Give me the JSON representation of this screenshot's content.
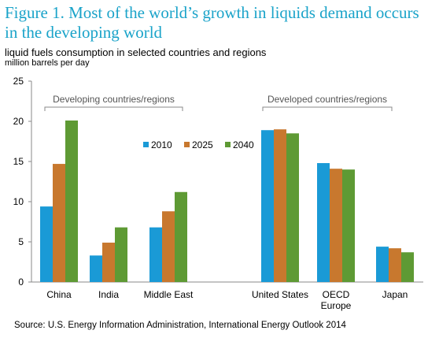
{
  "figure": {
    "title": "Figure 1. Most of the world’s growth in liquids demand occurs in the developing world",
    "subtitle": "liquid fuels consumption  in selected countries and regions",
    "units": "million barrels per day",
    "source": "Source:  U.S. Energy Information Administration, International Energy Outlook 2014"
  },
  "chart_data": {
    "type": "bar",
    "title": "Figure 1. Most of the world’s growth in liquids demand occurs in the developing world",
    "ylabel": "million barrels per day",
    "ylim": [
      0,
      25
    ],
    "yticks": [
      "0",
      "5",
      "10",
      "15",
      "20",
      "25"
    ],
    "grid": false,
    "legend_position": "top-center",
    "categories": [
      [
        "China"
      ],
      [
        "India"
      ],
      [
        "Middle East"
      ],
      [
        "United States"
      ],
      [
        "OECD",
        "Europe"
      ],
      [
        "Japan"
      ]
    ],
    "series": [
      {
        "name": "2010",
        "color": "#1a9ad6",
        "values": [
          9.4,
          3.3,
          6.8,
          18.9,
          14.8,
          4.4
        ]
      },
      {
        "name": "2025",
        "color": "#c8782e",
        "values": [
          14.7,
          4.9,
          8.8,
          19.0,
          14.1,
          4.2
        ]
      },
      {
        "name": "2040",
        "color": "#5e9a34",
        "values": [
          20.1,
          6.8,
          11.2,
          18.5,
          14.0,
          3.7
        ]
      }
    ],
    "group_labels": [
      "Developing countries/regions",
      "Developed countries/regions"
    ]
  }
}
